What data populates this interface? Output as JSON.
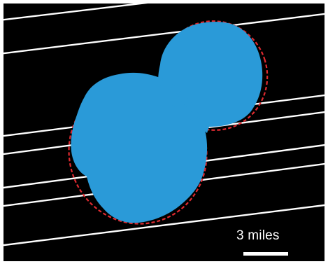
{
  "scale_bar": {
    "label": "3 miles"
  },
  "colors": {
    "background": "#000000",
    "object_fill": "#2a9ad8",
    "outline_dashed": "#e02a30",
    "occultation_chords": "#ffffff",
    "frame": "#ffffff"
  },
  "icons": {
    "object": "two-lobed-body-silhouette",
    "outline": "dashed-ellipse-outline",
    "chords": "parallel-occultation-lines"
  }
}
